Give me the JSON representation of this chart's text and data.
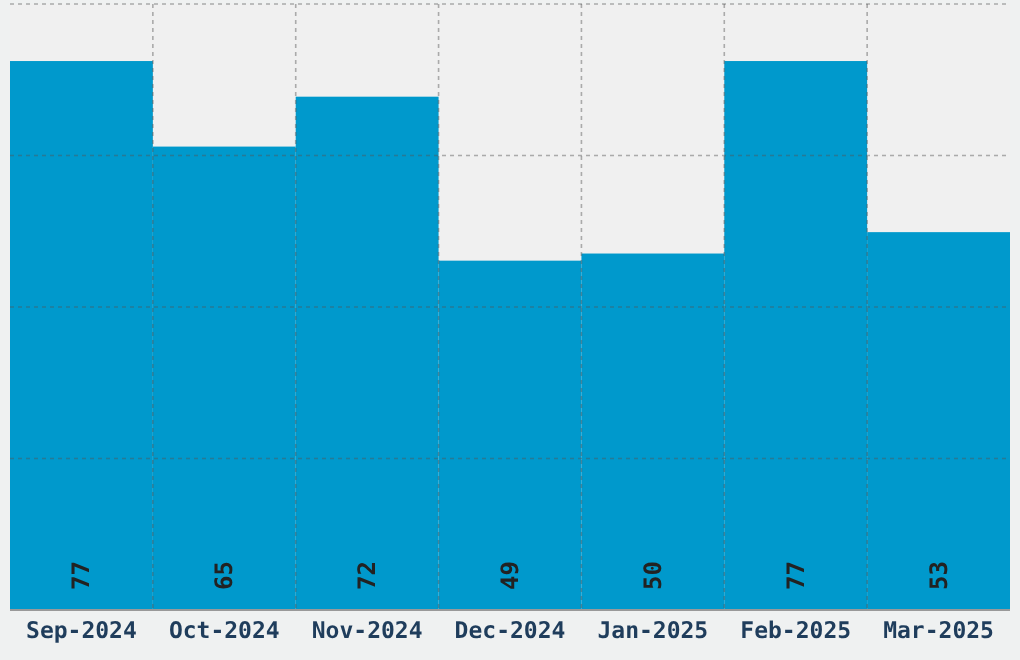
{
  "chart_data": {
    "type": "bar",
    "categories": [
      "Sep-2024",
      "Oct-2024",
      "Nov-2024",
      "Dec-2024",
      "Jan-2025",
      "Feb-2025",
      "Mar-2025"
    ],
    "values": [
      77,
      65,
      72,
      49,
      50,
      77,
      53
    ],
    "color": "#0099cc",
    "ylim": [
      0,
      85
    ],
    "yticks": [
      0,
      {
        "value": 21.25,
        "label": null
      },
      {
        "value": 42.5,
        "label": null
      },
      {
        "value": 63.75,
        "label": null
      },
      85
    ],
    "tick_labels": "x",
    "grid": true,
    "data_labels": true
  }
}
